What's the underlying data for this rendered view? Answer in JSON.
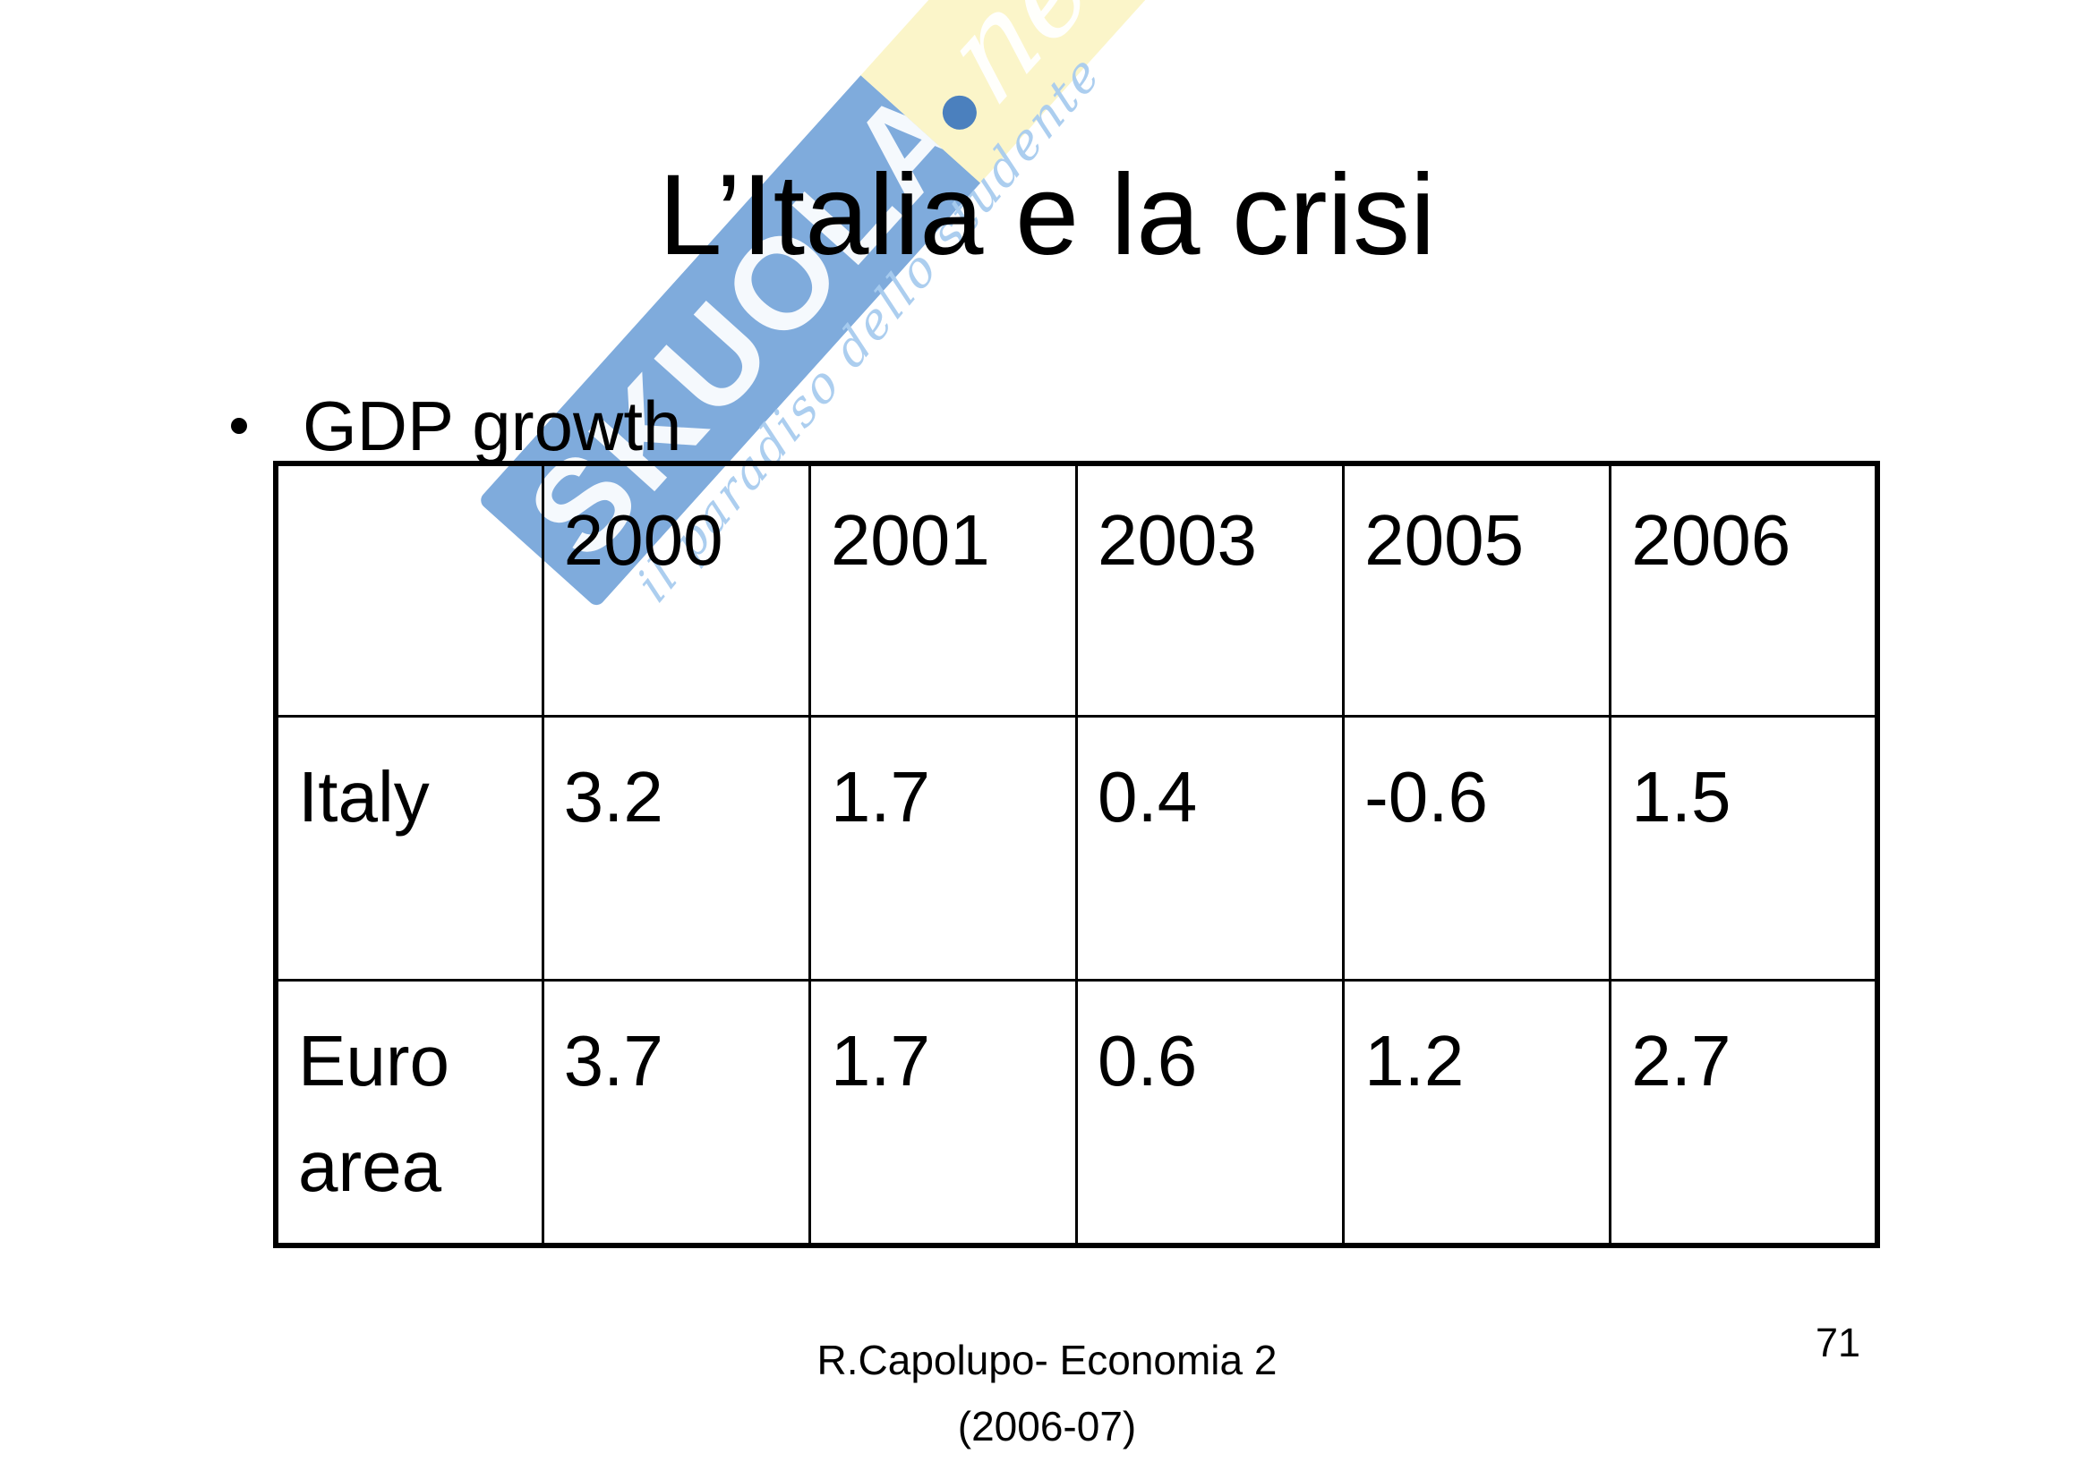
{
  "slide": {
    "title": "L’Italia e la crisi",
    "bullet": "GDP growth",
    "footer_line1": "R.Capolupo- Economia 2",
    "footer_line2": "(2006-07)",
    "page_number": "71"
  },
  "table": {
    "col_headers": [
      "",
      "2000",
      "2001",
      "2003",
      "2005",
      "2006"
    ],
    "rows": [
      {
        "label": "Italy",
        "values": [
          "3.2",
          "1.7",
          "0.4",
          "-0.6",
          "1.5"
        ]
      },
      {
        "label": "Euro area",
        "values": [
          "3.7",
          "1.7",
          "0.6",
          "1.2",
          "2.7"
        ]
      }
    ]
  },
  "watermark": {
    "brand": "SKUOLA",
    "suffix": "net",
    "tagline": "il paradiso dello studente",
    "colors": {
      "band_blue": "#5F96D3",
      "band_yellow": "#FBF4C6",
      "dot_blue": "#4179BE",
      "script_blue": "#A8CBEE"
    }
  }
}
